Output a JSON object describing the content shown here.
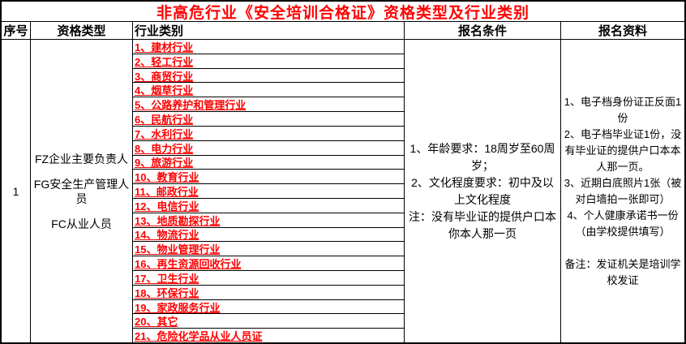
{
  "title": "非高危行业《安全培训合格证》资格类型及行业类别",
  "colors": {
    "title": "#ff0000",
    "industry_text": "#ff0000",
    "body_text": "#000000",
    "border": "#000000",
    "background": "#ffffff"
  },
  "columns": {
    "seq": "序号",
    "qualification": "资格类型",
    "industry": "行业类别",
    "conditions": "报名条件",
    "materials": "报名资料"
  },
  "row": {
    "seq": "1",
    "qualifications": [
      "FZ企业主要负责人",
      "FG安全生产管理人员",
      "FC从业人员"
    ],
    "industries": [
      "1、建材行业",
      "2、轻工行业",
      "3、商贸行业",
      "4、烟草行业",
      "5、公路养护和管理行业",
      "6、民航行业",
      "7、水利行业",
      "8、电力行业",
      "9、旅游行业",
      "10、教育行业",
      "11、邮政行业",
      "12、电信行业",
      "13、地质勘探行业",
      "14、物流行业",
      "15、物业管理行业",
      "16、再生资源回收行业",
      "17、卫生行业",
      "18、环保行业",
      "19、家政服务行业",
      "20、其它",
      "21、危险化学品从业人员证"
    ],
    "conditions": [
      "1、年龄要求：18周岁至60周岁；",
      "2、文化程度要求：初中及以上文化程度",
      "注：没有毕业证的提供户口本你本人那一页"
    ],
    "materials": [
      "1、电子档身份证正反面1份",
      "2、电子档毕业证1份，没有毕业证的提供户口本本人那一页。",
      "3、近期白底照片1张（被对白墙拍一张即可）",
      "4、个人健康承诺书一份（由学校提供填写）",
      "",
      "备注：发证机关是培训学校发证"
    ]
  }
}
